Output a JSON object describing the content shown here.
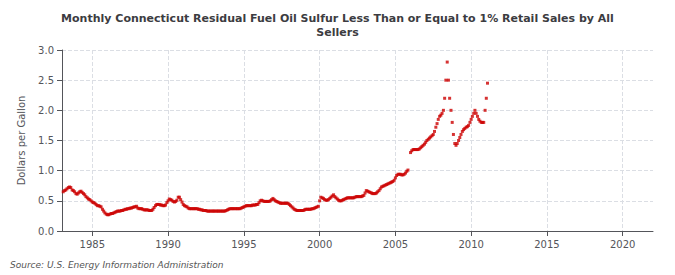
{
  "chart_data": {
    "type": "scatter",
    "title": "Monthly Connecticut Residual Fuel Oil Sulfur Less Than or Equal to 1% Retail Sales by All\nSellers",
    "ylabel": "Dollars per Gallon",
    "source": "Source: U.S. Energy Information Administration",
    "color": "#cc0000",
    "marker": "square",
    "grid": true,
    "xlim": [
      1983,
      2022
    ],
    "ylim": [
      0.0,
      3.0
    ],
    "xticks": [
      1985,
      1990,
      1995,
      2000,
      2005,
      2010,
      2015,
      2020
    ],
    "yticks": [
      {
        "value": 0.0,
        "label": "0.0"
      },
      0.5,
      {
        "value": 1.0,
        "label": "1.0"
      },
      1.5,
      {
        "value": 2.0,
        "label": "2.0"
      },
      2.5,
      {
        "value": 3.0,
        "label": "3.0"
      }
    ],
    "x": [
      1983.08,
      1983.17,
      1983.25,
      1983.33,
      1983.42,
      1983.5,
      1983.58,
      1983.67,
      1983.75,
      1983.83,
      1983.92,
      1984.0,
      1984.08,
      1984.17,
      1984.25,
      1984.33,
      1984.42,
      1984.5,
      1984.58,
      1984.67,
      1984.75,
      1984.83,
      1984.92,
      1985.0,
      1985.08,
      1985.17,
      1985.25,
      1985.33,
      1985.42,
      1985.5,
      1985.58,
      1985.67,
      1985.75,
      1985.83,
      1985.92,
      1986.0,
      1986.08,
      1986.17,
      1986.25,
      1986.33,
      1986.42,
      1986.5,
      1986.58,
      1986.67,
      1986.75,
      1986.83,
      1986.92,
      1987.0,
      1987.08,
      1987.17,
      1987.25,
      1987.33,
      1987.42,
      1987.5,
      1987.58,
      1987.67,
      1987.75,
      1987.83,
      1987.92,
      1988.0,
      1988.08,
      1988.17,
      1988.25,
      1988.33,
      1988.42,
      1988.5,
      1988.58,
      1988.67,
      1988.75,
      1988.83,
      1988.92,
      1989.0,
      1989.08,
      1989.17,
      1989.25,
      1989.33,
      1989.42,
      1989.5,
      1989.58,
      1989.67,
      1989.75,
      1989.83,
      1989.92,
      1990.0,
      1990.08,
      1990.17,
      1990.25,
      1990.33,
      1990.42,
      1990.5,
      1990.58,
      1990.67,
      1990.75,
      1990.83,
      1990.92,
      1991.0,
      1991.08,
      1991.17,
      1991.25,
      1991.33,
      1991.42,
      1991.5,
      1991.58,
      1991.67,
      1991.75,
      1991.83,
      1991.92,
      1992.0,
      1992.08,
      1992.17,
      1992.25,
      1992.33,
      1992.42,
      1992.5,
      1992.58,
      1992.67,
      1992.75,
      1992.83,
      1992.92,
      1993.0,
      1993.08,
      1993.17,
      1993.25,
      1993.33,
      1993.42,
      1993.5,
      1993.58,
      1993.67,
      1993.75,
      1993.83,
      1993.92,
      1994.0,
      1994.08,
      1994.17,
      1994.25,
      1994.33,
      1994.42,
      1994.5,
      1994.58,
      1994.67,
      1994.75,
      1994.83,
      1994.92,
      1995.0,
      1995.08,
      1995.17,
      1995.25,
      1995.33,
      1995.42,
      1995.5,
      1995.58,
      1995.67,
      1995.75,
      1995.83,
      1995.92,
      1996.0,
      1996.08,
      1996.17,
      1996.25,
      1996.33,
      1996.42,
      1996.5,
      1996.58,
      1996.67,
      1996.75,
      1996.83,
      1996.92,
      1997.0,
      1997.08,
      1997.17,
      1997.25,
      1997.33,
      1997.42,
      1997.5,
      1997.58,
      1997.67,
      1997.75,
      1997.83,
      1997.92,
      1998.0,
      1998.08,
      1998.17,
      1998.25,
      1998.33,
      1998.42,
      1998.5,
      1998.58,
      1998.67,
      1998.75,
      1998.83,
      1998.92,
      1999.0,
      1999.08,
      1999.17,
      1999.25,
      1999.33,
      1999.42,
      1999.5,
      1999.58,
      1999.67,
      1999.75,
      1999.83,
      1999.92,
      2000.0,
      2000.08,
      2000.17,
      2000.25,
      2000.33,
      2000.42,
      2000.5,
      2000.58,
      2000.67,
      2000.75,
      2000.83,
      2000.92,
      2001.0,
      2001.08,
      2001.17,
      2001.25,
      2001.33,
      2001.42,
      2001.5,
      2001.58,
      2001.67,
      2001.75,
      2001.83,
      2001.92,
      2002.0,
      2002.08,
      2002.17,
      2002.25,
      2002.33,
      2002.42,
      2002.5,
      2002.58,
      2002.67,
      2002.75,
      2002.83,
      2002.92,
      2003.0,
      2003.08,
      2003.17,
      2003.25,
      2003.33,
      2003.42,
      2003.5,
      2003.58,
      2003.67,
      2003.75,
      2003.83,
      2003.92,
      2004.0,
      2004.08,
      2004.17,
      2004.25,
      2004.33,
      2004.42,
      2004.5,
      2004.58,
      2004.67,
      2004.75,
      2004.83,
      2004.92,
      2005.0,
      2005.08,
      2005.17,
      2005.25,
      2005.33,
      2005.42,
      2005.5,
      2005.58,
      2005.67,
      2005.75,
      2005.83,
      2006.0,
      2006.08,
      2006.17,
      2006.25,
      2006.33,
      2006.42,
      2006.5,
      2006.58,
      2006.67,
      2006.75,
      2006.83,
      2006.92,
      2007.0,
      2007.08,
      2007.17,
      2007.25,
      2007.33,
      2007.42,
      2007.5,
      2007.58,
      2007.67,
      2007.75,
      2007.83,
      2007.92,
      2008.0,
      2008.08,
      2008.17,
      2008.25,
      2008.33,
      2008.42,
      2008.5,
      2008.58,
      2008.67,
      2008.75,
      2008.83,
      2008.92,
      2009.0,
      2009.08,
      2009.17,
      2009.25,
      2009.33,
      2009.42,
      2009.5,
      2009.58,
      2009.67,
      2009.75,
      2009.83,
      2009.92,
      2010.0,
      2010.08,
      2010.17,
      2010.25,
      2010.33,
      2010.42,
      2010.5,
      2010.58,
      2010.67,
      2010.75,
      2010.83,
      2010.92,
      2011.0,
      2011.08
    ],
    "values": [
      0.65,
      0.67,
      0.68,
      0.7,
      0.72,
      0.73,
      0.72,
      0.68,
      0.67,
      0.65,
      0.62,
      0.61,
      0.63,
      0.65,
      0.66,
      0.64,
      0.62,
      0.6,
      0.57,
      0.55,
      0.53,
      0.52,
      0.5,
      0.48,
      0.47,
      0.46,
      0.44,
      0.42,
      0.42,
      0.41,
      0.4,
      0.36,
      0.33,
      0.3,
      0.28,
      0.27,
      0.27,
      0.28,
      0.29,
      0.29,
      0.3,
      0.31,
      0.32,
      0.33,
      0.33,
      0.33,
      0.34,
      0.34,
      0.35,
      0.36,
      0.36,
      0.37,
      0.37,
      0.38,
      0.38,
      0.39,
      0.4,
      0.4,
      0.41,
      0.38,
      0.37,
      0.37,
      0.37,
      0.36,
      0.35,
      0.35,
      0.35,
      0.35,
      0.34,
      0.34,
      0.34,
      0.36,
      0.39,
      0.42,
      0.44,
      0.44,
      0.44,
      0.43,
      0.43,
      0.42,
      0.42,
      0.43,
      0.47,
      0.5,
      0.53,
      0.52,
      0.51,
      0.49,
      0.48,
      0.49,
      0.51,
      0.56,
      0.56,
      0.52,
      0.48,
      0.44,
      0.42,
      0.41,
      0.4,
      0.38,
      0.37,
      0.37,
      0.37,
      0.37,
      0.37,
      0.37,
      0.37,
      0.36,
      0.36,
      0.35,
      0.35,
      0.34,
      0.34,
      0.34,
      0.33,
      0.33,
      0.33,
      0.33,
      0.33,
      0.33,
      0.33,
      0.33,
      0.33,
      0.33,
      0.33,
      0.33,
      0.33,
      0.33,
      0.33,
      0.34,
      0.35,
      0.36,
      0.37,
      0.37,
      0.37,
      0.37,
      0.37,
      0.37,
      0.37,
      0.37,
      0.37,
      0.38,
      0.39,
      0.4,
      0.41,
      0.42,
      0.42,
      0.42,
      0.42,
      0.42,
      0.43,
      0.43,
      0.43,
      0.44,
      0.44,
      0.47,
      0.5,
      0.51,
      0.5,
      0.49,
      0.49,
      0.49,
      0.49,
      0.49,
      0.5,
      0.52,
      0.54,
      0.52,
      0.5,
      0.49,
      0.48,
      0.47,
      0.46,
      0.46,
      0.46,
      0.46,
      0.46,
      0.46,
      0.46,
      0.44,
      0.42,
      0.4,
      0.38,
      0.36,
      0.35,
      0.34,
      0.34,
      0.34,
      0.34,
      0.34,
      0.34,
      0.35,
      0.36,
      0.36,
      0.36,
      0.36,
      0.36,
      0.37,
      0.37,
      0.38,
      0.39,
      0.4,
      0.41,
      0.5,
      0.56,
      0.55,
      0.54,
      0.52,
      0.51,
      0.51,
      0.52,
      0.54,
      0.56,
      0.58,
      0.6,
      0.57,
      0.55,
      0.53,
      0.51,
      0.5,
      0.5,
      0.51,
      0.52,
      0.53,
      0.54,
      0.55,
      0.55,
      0.55,
      0.55,
      0.55,
      0.55,
      0.56,
      0.57,
      0.57,
      0.57,
      0.57,
      0.57,
      0.58,
      0.59,
      0.63,
      0.67,
      0.66,
      0.65,
      0.64,
      0.63,
      0.62,
      0.62,
      0.62,
      0.63,
      0.65,
      0.67,
      0.7,
      0.73,
      0.74,
      0.75,
      0.76,
      0.77,
      0.78,
      0.79,
      0.8,
      0.81,
      0.82,
      0.84,
      0.88,
      0.92,
      0.94,
      0.94,
      0.94,
      0.93,
      0.93,
      0.94,
      0.96,
      0.99,
      1.01,
      1.3,
      1.33,
      1.35,
      1.35,
      1.35,
      1.35,
      1.35,
      1.36,
      1.38,
      1.4,
      1.42,
      1.44,
      1.47,
      1.5,
      1.52,
      1.54,
      1.56,
      1.58,
      1.6,
      1.65,
      1.72,
      1.78,
      1.85,
      1.9,
      1.92,
      1.95,
      2.0,
      2.2,
      2.5,
      2.8,
      2.5,
      2.2,
      2.0,
      1.8,
      1.6,
      1.45,
      1.42,
      1.45,
      1.5,
      1.55,
      1.6,
      1.65,
      1.68,
      1.7,
      1.72,
      1.73,
      1.75,
      1.8,
      1.85,
      1.9,
      1.95,
      2.0,
      1.95,
      1.9,
      1.85,
      1.82,
      1.8,
      1.8,
      1.8,
      2.0,
      2.2,
      2.45
    ]
  }
}
